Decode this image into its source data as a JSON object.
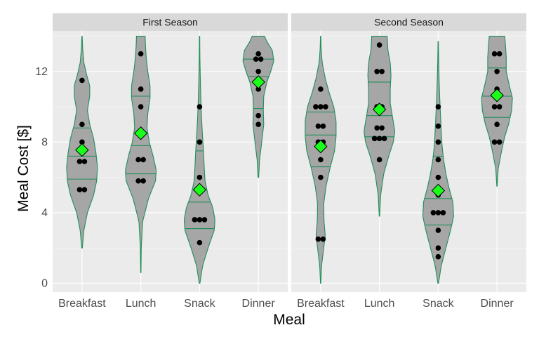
{
  "chart_data": {
    "type": "violin",
    "xlabel": "Meal",
    "ylabel": "Meal Cost [$]",
    "categories": [
      "Breakfast",
      "Lunch",
      "Snack",
      "Dinner"
    ],
    "ylim": [
      -0.5,
      14.3
    ],
    "yticks": [
      0,
      4,
      8,
      12
    ],
    "grid": true,
    "colors": {
      "panel_bg": "#ebebeb",
      "strip_bg": "#d9d9d9",
      "grid": "#ffffff",
      "violin_fill": "#a6a6a6",
      "violin_stroke": "#1f8f5a",
      "point": "#000000",
      "mean_marker": "#1aff1a"
    },
    "panels": [
      {
        "title": "First Season",
        "violins": [
          {
            "category": "Breakfast",
            "range": [
              2,
              14
            ],
            "quartiles": [
              5.9,
              7.2,
              8.8
            ],
            "mean": 7.55,
            "density": [
              [
                2,
                0.02
              ],
              [
                3,
                0.12
              ],
              [
                4,
                0.35
              ],
              [
                5,
                0.75
              ],
              [
                5.8,
                0.95
              ],
              [
                6.6,
                1.0
              ],
              [
                7.4,
                0.9
              ],
              [
                8.2,
                0.75
              ],
              [
                9,
                0.5
              ],
              [
                9.8,
                0.35
              ],
              [
                10.6,
                0.5
              ],
              [
                11.2,
                0.5
              ],
              [
                11.8,
                0.3
              ],
              [
                12.5,
                0.12
              ],
              [
                13.3,
                0.04
              ],
              [
                14,
                0.01
              ]
            ],
            "points": [
              5.3,
              5.3,
              6.9,
              6.9,
              8.0,
              9.0,
              11.5
            ]
          },
          {
            "category": "Lunch",
            "range": [
              0.6,
              14
            ],
            "quartiles": [
              6.2,
              7.8,
              10.6
            ],
            "mean": 8.5,
            "density": [
              [
                0.6,
                0.01
              ],
              [
                2,
                0.03
              ],
              [
                3.5,
                0.12
              ],
              [
                4.8,
                0.5
              ],
              [
                5.8,
                0.95
              ],
              [
                6.4,
                1.0
              ],
              [
                7.2,
                0.8
              ],
              [
                8,
                0.55
              ],
              [
                8.8,
                0.4
              ],
              [
                9.6,
                0.45
              ],
              [
                10.5,
                0.6
              ],
              [
                11.2,
                0.6
              ],
              [
                12,
                0.45
              ],
              [
                12.8,
                0.35
              ],
              [
                13.5,
                0.3
              ],
              [
                14,
                0.28
              ]
            ],
            "points": [
              5.8,
              5.8,
              7.0,
              7.0,
              10.0,
              11.0,
              13.0
            ]
          },
          {
            "category": "Snack",
            "range": [
              0,
              14
            ],
            "quartiles": [
              3.1,
              4.6,
              7.5
            ],
            "mean": 5.3,
            "density": [
              [
                0,
                0.02
              ],
              [
                1,
                0.2
              ],
              [
                2,
                0.55
              ],
              [
                3,
                0.95
              ],
              [
                3.6,
                1.0
              ],
              [
                4.3,
                0.85
              ],
              [
                5,
                0.55
              ],
              [
                5.8,
                0.35
              ],
              [
                6.6,
                0.3
              ],
              [
                7.5,
                0.25
              ],
              [
                8.5,
                0.18
              ],
              [
                9.5,
                0.12
              ],
              [
                10.5,
                0.08
              ],
              [
                11.5,
                0.05
              ],
              [
                12.8,
                0.02
              ],
              [
                14,
                0.01
              ]
            ],
            "points": [
              2.3,
              3.6,
              3.6,
              3.6,
              6.0,
              8.0,
              10.0
            ]
          },
          {
            "category": "Dinner",
            "range": [
              6,
              14
            ],
            "quartiles": [
              9.9,
              11.7,
              12.7
            ],
            "mean": 11.4,
            "density": [
              [
                6,
                0.02
              ],
              [
                7,
                0.08
              ],
              [
                8,
                0.22
              ],
              [
                9,
                0.35
              ],
              [
                9.8,
                0.32
              ],
              [
                10.6,
                0.35
              ],
              [
                11.4,
                0.55
              ],
              [
                12,
                0.8
              ],
              [
                12.6,
                1.0
              ],
              [
                13.2,
                0.9
              ],
              [
                13.7,
                0.55
              ],
              [
                14,
                0.4
              ]
            ],
            "points": [
              9.0,
              9.5,
              11.0,
              12.0,
              12.7,
              12.7,
              13.0
            ]
          }
        ]
      },
      {
        "title": "Second Season",
        "violins": [
          {
            "category": "Breakfast",
            "range": [
              0,
              14
            ],
            "quartiles": [
              6.6,
              8.4,
              9.7
            ],
            "mean": 7.75,
            "density": [
              [
                0,
                0.01
              ],
              [
                1,
                0.06
              ],
              [
                2,
                0.2
              ],
              [
                2.7,
                0.3
              ],
              [
                3.5,
                0.22
              ],
              [
                4.5,
                0.2
              ],
              [
                5.5,
                0.35
              ],
              [
                6.5,
                0.6
              ],
              [
                7.5,
                0.9
              ],
              [
                8.3,
                1.0
              ],
              [
                9.2,
                1.0
              ],
              [
                10,
                0.85
              ],
              [
                10.8,
                0.55
              ],
              [
                11.6,
                0.3
              ],
              [
                12.5,
                0.1
              ],
              [
                13.3,
                0.03
              ],
              [
                14,
                0.01
              ]
            ],
            "points": [
              2.5,
              2.5,
              6.0,
              7.0,
              8.0,
              8.0,
              8.9,
              8.9,
              10.0,
              10.0,
              10.0,
              11.0
            ]
          },
          {
            "category": "Lunch",
            "range": [
              3.8,
              14
            ],
            "quartiles": [
              8.3,
              9.5,
              11.4
            ],
            "mean": 9.85,
            "density": [
              [
                3.8,
                0.01
              ],
              [
                5,
                0.08
              ],
              [
                6.2,
                0.28
              ],
              [
                7.2,
                0.6
              ],
              [
                8,
                0.9
              ],
              [
                8.6,
                1.0
              ],
              [
                9.4,
                0.85
              ],
              [
                10.2,
                0.7
              ],
              [
                11,
                0.7
              ],
              [
                11.8,
                0.75
              ],
              [
                12.5,
                0.7
              ],
              [
                13.2,
                0.55
              ],
              [
                14,
                0.5
              ]
            ],
            "points": [
              7.0,
              8.2,
              8.2,
              8.2,
              8.8,
              8.8,
              10.0,
              10.0,
              12.0,
              12.0,
              13.5
            ]
          },
          {
            "category": "Snack",
            "range": [
              0,
              13.7
            ],
            "quartiles": [
              3.3,
              4.8,
              7.2
            ],
            "mean": 5.25,
            "density": [
              [
                0,
                0.02
              ],
              [
                1,
                0.2
              ],
              [
                2,
                0.5
              ],
              [
                3,
                0.8
              ],
              [
                3.8,
                1.0
              ],
              [
                4.6,
                0.95
              ],
              [
                5.4,
                0.7
              ],
              [
                6.2,
                0.5
              ],
              [
                7,
                0.35
              ],
              [
                7.8,
                0.25
              ],
              [
                8.6,
                0.2
              ],
              [
                9.5,
                0.15
              ],
              [
                10.5,
                0.1
              ],
              [
                11.5,
                0.06
              ],
              [
                12.6,
                0.03
              ],
              [
                13.7,
                0.01
              ]
            ],
            "points": [
              1.5,
              2.0,
              3.0,
              4.0,
              4.0,
              4.0,
              5.0,
              6.0,
              7.0,
              8.0,
              8.9,
              10.0
            ]
          },
          {
            "category": "Dinner",
            "range": [
              5.5,
              14
            ],
            "quartiles": [
              9.4,
              10.6,
              12.2
            ],
            "mean": 10.65,
            "density": [
              [
                5.5,
                0.01
              ],
              [
                6.5,
                0.08
              ],
              [
                7.5,
                0.3
              ],
              [
                8.3,
                0.5
              ],
              [
                9,
                0.75
              ],
              [
                9.8,
                0.95
              ],
              [
                10.5,
                1.0
              ],
              [
                11.2,
                0.8
              ],
              [
                12,
                0.6
              ],
              [
                12.8,
                0.6
              ],
              [
                13.5,
                0.55
              ],
              [
                14,
                0.5
              ]
            ],
            "points": [
              8.0,
              8.0,
              9.0,
              10.0,
              10.0,
              10.7,
              11.0,
              12.0,
              13.0,
              13.0
            ]
          }
        ]
      }
    ]
  }
}
